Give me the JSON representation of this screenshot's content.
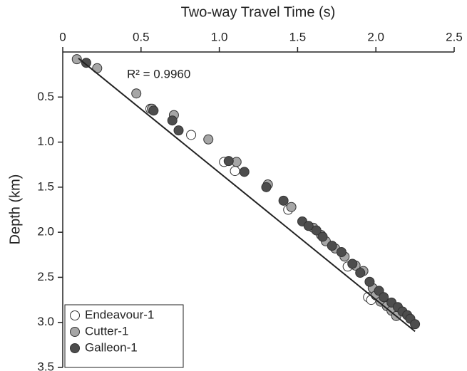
{
  "chart_data": {
    "type": "scatter",
    "x_label": "Two-way Travel Time (s)",
    "y_label": "Depth (km)",
    "annotation": "R² = 0.9960",
    "xlim": [
      0,
      2.5
    ],
    "xticks": [
      0,
      0.5,
      {
        "value": 1,
        "label": "1.0"
      },
      1.5,
      {
        "value": 2,
        "label": "2.0"
      },
      2.5
    ],
    "ylim": [
      0,
      3.5
    ],
    "y_inverted": true,
    "yticks": [
      0.5,
      {
        "value": 1,
        "label": "1.0"
      },
      1.5,
      {
        "value": 2,
        "label": "2.0"
      },
      2.5,
      {
        "value": 3,
        "label": "3.0"
      },
      3.5
    ],
    "legend_position": "lower left",
    "fit_line": {
      "color": "#222222",
      "x": [
        0.1,
        2.25
      ],
      "y": [
        0.07,
        3.1
      ]
    },
    "series": [
      {
        "name": "Endeavour-1",
        "color": "#ffffff",
        "x": [
          0.56,
          0.82,
          1.03,
          1.1,
          1.44,
          1.82,
          1.95,
          1.97
        ],
        "values": [
          0.63,
          0.92,
          1.22,
          1.32,
          1.75,
          2.38,
          2.72,
          2.75
        ]
      },
      {
        "name": "Cutter-1",
        "color": "#a6a6a6",
        "x": [
          0.09,
          0.22,
          0.47,
          0.57,
          0.71,
          0.93,
          1.11,
          1.31,
          1.46,
          1.6,
          1.65,
          1.68,
          1.74,
          1.8,
          1.87,
          1.92,
          1.98,
          2.0,
          2.03,
          2.07,
          2.1,
          2.13
        ],
        "values": [
          0.08,
          0.18,
          0.46,
          0.63,
          0.7,
          0.97,
          1.22,
          1.47,
          1.72,
          1.95,
          2.03,
          2.1,
          2.18,
          2.27,
          2.37,
          2.43,
          2.62,
          2.7,
          2.77,
          2.82,
          2.87,
          2.93
        ]
      },
      {
        "name": "Galleon-1",
        "color": "#4d4d4d",
        "x": [
          0.15,
          0.58,
          0.7,
          0.74,
          1.06,
          1.16,
          1.3,
          1.41,
          1.53,
          1.57,
          1.62,
          1.66,
          1.72,
          1.78,
          1.85,
          1.9,
          1.96,
          2.02,
          2.05,
          2.1,
          2.14,
          2.17,
          2.2,
          2.22,
          2.25
        ],
        "values": [
          0.12,
          0.65,
          0.76,
          0.87,
          1.21,
          1.33,
          1.5,
          1.65,
          1.88,
          1.93,
          1.98,
          2.05,
          2.15,
          2.22,
          2.35,
          2.45,
          2.55,
          2.65,
          2.72,
          2.78,
          2.83,
          2.88,
          2.92,
          2.96,
          3.02
        ]
      }
    ]
  }
}
